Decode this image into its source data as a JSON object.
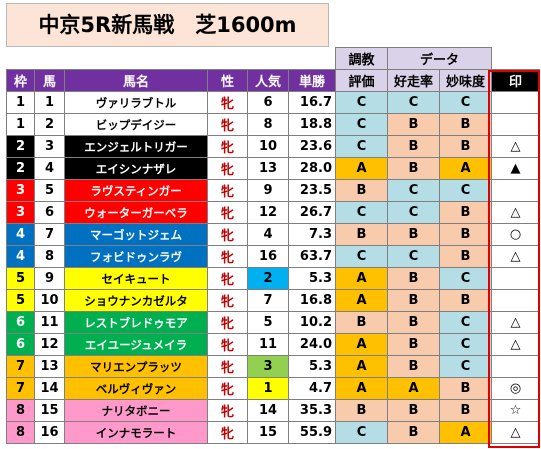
{
  "title": "中京5R新馬戦　芝1600m",
  "header_top": {
    "training": "調教",
    "data": "データ"
  },
  "columns": {
    "waku": "枠",
    "uma": "馬",
    "name": "馬名",
    "sex": "性",
    "pop": "人気",
    "odds": "単勝",
    "eval": "評価",
    "run_rate": "好走率",
    "flavor": "妙味度",
    "mark": "印"
  },
  "colors": {
    "header_purple": "#7030a0",
    "header_lavender": "#d9d2e9",
    "rating_C": "#b4dde6",
    "rating_B": "#f8cbad",
    "rating_A": "#ffc000",
    "mark_frame": "#e00000"
  },
  "rows": [
    {
      "waku": "1",
      "uma": "1",
      "name": "ヴァリラブトル",
      "sex": "牝",
      "pop": "6",
      "odds": "16.7",
      "eval": "C",
      "run_rate": "C",
      "flavor": "C",
      "mark": "",
      "waku_bg": "#ffffff",
      "waku_fg": "#000000",
      "name_bg": "#ffffff",
      "name_fg": "#000000",
      "pop_bg": "#ffffff"
    },
    {
      "waku": "1",
      "uma": "2",
      "name": "ビップデイジー",
      "sex": "牝",
      "pop": "8",
      "odds": "18.8",
      "eval": "C",
      "run_rate": "B",
      "flavor": "B",
      "mark": "",
      "waku_bg": "#ffffff",
      "waku_fg": "#000000",
      "name_bg": "#ffffff",
      "name_fg": "#000000",
      "pop_bg": "#ffffff"
    },
    {
      "waku": "2",
      "uma": "3",
      "name": "エンジェルトリガー",
      "sex": "牝",
      "pop": "10",
      "odds": "23.6",
      "eval": "C",
      "run_rate": "B",
      "flavor": "B",
      "mark": "△",
      "waku_bg": "#000000",
      "waku_fg": "#ffffff",
      "name_bg": "#000000",
      "name_fg": "#ffffff",
      "pop_bg": "#ffffff"
    },
    {
      "waku": "2",
      "uma": "4",
      "name": "エイシンナザレ",
      "sex": "牝",
      "pop": "13",
      "odds": "28.0",
      "eval": "A",
      "run_rate": "B",
      "flavor": "A",
      "mark": "▲",
      "waku_bg": "#000000",
      "waku_fg": "#ffffff",
      "name_bg": "#000000",
      "name_fg": "#ffffff",
      "pop_bg": "#ffffff"
    },
    {
      "waku": "3",
      "uma": "5",
      "name": "ラヴスティンガー",
      "sex": "牝",
      "pop": "9",
      "odds": "23.5",
      "eval": "B",
      "run_rate": "C",
      "flavor": "C",
      "mark": "",
      "waku_bg": "#ff0000",
      "waku_fg": "#ffffff",
      "name_bg": "#ff0000",
      "name_fg": "#ffffff",
      "pop_bg": "#ffffff"
    },
    {
      "waku": "3",
      "uma": "6",
      "name": "ウォーターガーベラ",
      "sex": "牝",
      "pop": "12",
      "odds": "26.7",
      "eval": "C",
      "run_rate": "C",
      "flavor": "B",
      "mark": "△",
      "waku_bg": "#ff0000",
      "waku_fg": "#ffffff",
      "name_bg": "#ff0000",
      "name_fg": "#ffffff",
      "pop_bg": "#ffffff"
    },
    {
      "waku": "4",
      "uma": "7",
      "name": "マーゴットジェム",
      "sex": "牝",
      "pop": "4",
      "odds": "7.3",
      "eval": "B",
      "run_rate": "B",
      "flavor": "B",
      "mark": "○",
      "waku_bg": "#0070c0",
      "waku_fg": "#ffffff",
      "name_bg": "#0070c0",
      "name_fg": "#ffffff",
      "pop_bg": "#ffffff"
    },
    {
      "waku": "4",
      "uma": "8",
      "name": "フォビドゥンラヴ",
      "sex": "牝",
      "pop": "16",
      "odds": "63.7",
      "eval": "C",
      "run_rate": "C",
      "flavor": "B",
      "mark": "△",
      "waku_bg": "#0070c0",
      "waku_fg": "#ffffff",
      "name_bg": "#0070c0",
      "name_fg": "#ffffff",
      "pop_bg": "#ffffff"
    },
    {
      "waku": "5",
      "uma": "9",
      "name": "セイキュート",
      "sex": "牝",
      "pop": "2",
      "odds": "5.3",
      "eval": "A",
      "run_rate": "B",
      "flavor": "C",
      "mark": "",
      "waku_bg": "#ffff00",
      "waku_fg": "#000000",
      "name_bg": "#ffff00",
      "name_fg": "#000000",
      "pop_bg": "#00b0f0"
    },
    {
      "waku": "5",
      "uma": "10",
      "name": "ショウナンカゼルタ",
      "sex": "牝",
      "pop": "7",
      "odds": "16.8",
      "eval": "A",
      "run_rate": "B",
      "flavor": "B",
      "mark": "",
      "waku_bg": "#ffff00",
      "waku_fg": "#000000",
      "name_bg": "#ffff00",
      "name_fg": "#000000",
      "pop_bg": "#ffffff"
    },
    {
      "waku": "6",
      "uma": "11",
      "name": "レストブレドゥモア",
      "sex": "牝",
      "pop": "5",
      "odds": "10.2",
      "eval": "B",
      "run_rate": "B",
      "flavor": "C",
      "mark": "△",
      "waku_bg": "#00b050",
      "waku_fg": "#ffffff",
      "name_bg": "#00b050",
      "name_fg": "#ffffff",
      "pop_bg": "#ffffff"
    },
    {
      "waku": "6",
      "uma": "12",
      "name": "エイユージュメイラ",
      "sex": "牝",
      "pop": "11",
      "odds": "24.0",
      "eval": "A",
      "run_rate": "B",
      "flavor": "C",
      "mark": "△",
      "waku_bg": "#00b050",
      "waku_fg": "#ffffff",
      "name_bg": "#00b050",
      "name_fg": "#ffffff",
      "pop_bg": "#ffffff"
    },
    {
      "waku": "7",
      "uma": "13",
      "name": "マリエンプラッツ",
      "sex": "牝",
      "pop": "3",
      "odds": "5.3",
      "eval": "A",
      "run_rate": "B",
      "flavor": "C",
      "mark": "",
      "waku_bg": "#ffc000",
      "waku_fg": "#000000",
      "name_bg": "#ffc000",
      "name_fg": "#000000",
      "pop_bg": "#92d050"
    },
    {
      "waku": "7",
      "uma": "14",
      "name": "ベルヴィヴァン",
      "sex": "牝",
      "pop": "1",
      "odds": "4.7",
      "eval": "A",
      "run_rate": "A",
      "flavor": "B",
      "mark": "◎",
      "waku_bg": "#ffc000",
      "waku_fg": "#000000",
      "name_bg": "#ffc000",
      "name_fg": "#000000",
      "pop_bg": "#ffff00"
    },
    {
      "waku": "8",
      "uma": "15",
      "name": "ナリタボニー",
      "sex": "牝",
      "pop": "14",
      "odds": "35.3",
      "eval": "B",
      "run_rate": "B",
      "flavor": "B",
      "mark": "☆",
      "waku_bg": "#ff99cc",
      "waku_fg": "#000000",
      "name_bg": "#ff99cc",
      "name_fg": "#000000",
      "pop_bg": "#ffffff"
    },
    {
      "waku": "8",
      "uma": "16",
      "name": "インナモラート",
      "sex": "牝",
      "pop": "15",
      "odds": "55.9",
      "eval": "C",
      "run_rate": "B",
      "flavor": "A",
      "mark": "△",
      "waku_bg": "#ff99cc",
      "waku_fg": "#000000",
      "name_bg": "#ff99cc",
      "name_fg": "#000000",
      "pop_bg": "#ffffff"
    }
  ]
}
